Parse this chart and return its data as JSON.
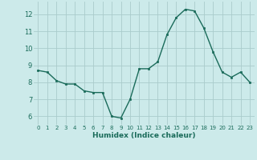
{
  "x": [
    0,
    1,
    2,
    3,
    4,
    5,
    6,
    7,
    8,
    9,
    10,
    11,
    12,
    13,
    14,
    15,
    16,
    17,
    18,
    19,
    20,
    21,
    22,
    23
  ],
  "y": [
    8.7,
    8.6,
    8.1,
    7.9,
    7.9,
    7.5,
    7.4,
    7.4,
    6.0,
    5.9,
    7.0,
    8.8,
    8.8,
    9.2,
    10.8,
    11.8,
    12.3,
    12.2,
    11.2,
    9.8,
    8.6,
    8.3,
    8.6,
    8.0
  ],
  "xlabel": "Humidex (Indice chaleur)",
  "xlim": [
    -0.5,
    23.5
  ],
  "ylim": [
    5.5,
    12.75
  ],
  "yticks": [
    6,
    7,
    8,
    9,
    10,
    11,
    12
  ],
  "xticks": [
    0,
    1,
    2,
    3,
    4,
    5,
    6,
    7,
    8,
    9,
    10,
    11,
    12,
    13,
    14,
    15,
    16,
    17,
    18,
    19,
    20,
    21,
    22,
    23
  ],
  "line_color": "#1a6b5a",
  "marker_color": "#1a6b5a",
  "bg_color": "#cceaea",
  "grid_color": "#aacccc",
  "tick_label_color": "#1a6b5a",
  "axis_label_color": "#1a6b5a"
}
